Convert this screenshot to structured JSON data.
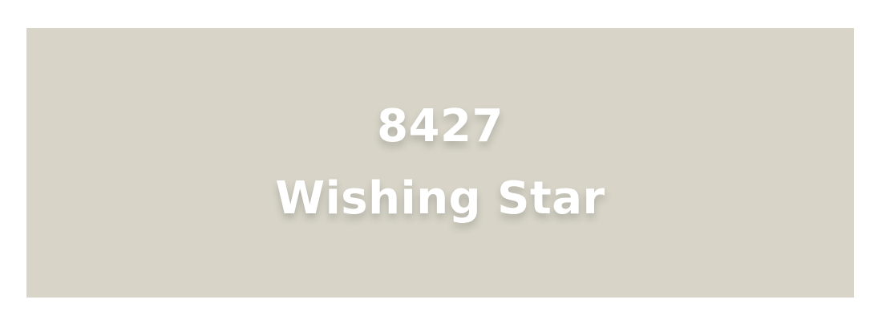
{
  "swatch": {
    "code": "8427",
    "name": "Wishing Star",
    "background_color": "#d8d5c8",
    "text_color": "#ffffff"
  }
}
